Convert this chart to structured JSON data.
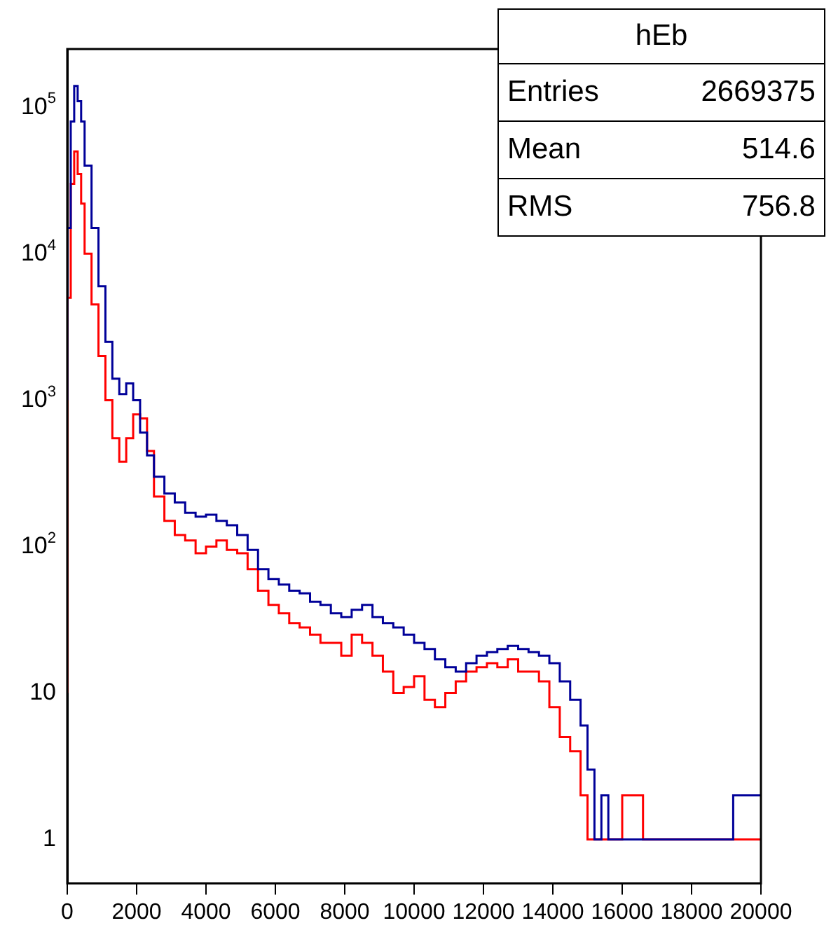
{
  "chart_data": {
    "type": "step",
    "xlim": [
      0,
      20000
    ],
    "xticks": [
      0,
      2000,
      4000,
      6000,
      8000,
      10000,
      12000,
      14000,
      16000,
      18000,
      20000
    ],
    "ylim": [
      0.5,
      250000
    ],
    "yticks": [
      1,
      10,
      {
        "value": 100,
        "label": "10$^{2}$"
      },
      {
        "value": 1000,
        "label": "10$^{3}$"
      },
      {
        "value": 10000,
        "label": "10$^{4}$"
      },
      {
        "value": 100000,
        "label": "10$^{5}$"
      }
    ],
    "log": "y",
    "grid": false,
    "legend": false,
    "annotations": [
      "hEb",
      "Entries 2669375",
      "Mean 514.6",
      "RMS 756.8"
    ],
    "series": [
      {
        "color": "#000099",
        "x": [
          0,
          100,
          200,
          300,
          400,
          500,
          700,
          900,
          1100,
          1300,
          1500,
          1700,
          1900,
          2100,
          2300,
          2500,
          2800,
          3100,
          3400,
          3700,
          4000,
          4300,
          4600,
          4900,
          5200,
          5500,
          5800,
          6100,
          6400,
          6700,
          7000,
          7300,
          7600,
          7900,
          8200,
          8500,
          8800,
          9100,
          9400,
          9700,
          10000,
          10300,
          10600,
          10900,
          11200,
          11500,
          11800,
          12100,
          12400,
          12700,
          13000,
          13300,
          13600,
          13900,
          14200,
          14500,
          14800,
          15000,
          15200,
          15400,
          15600,
          15800,
          16100,
          16500,
          17400,
          18300,
          19200,
          19500,
          19800,
          20000
        ],
        "values": [
          1000,
          15000,
          80000,
          140000,
          110000,
          80000,
          40000,
          15000,
          6000,
          2500,
          1400,
          1100,
          1300,
          1000,
          600,
          420,
          300,
          230,
          200,
          170,
          160,
          165,
          150,
          140,
          120,
          95,
          70,
          60,
          55,
          50,
          48,
          42,
          40,
          35,
          33,
          37,
          40,
          33,
          30,
          28,
          25,
          22,
          20,
          17,
          15,
          14,
          16,
          18,
          19,
          20,
          21,
          20,
          19,
          18,
          16,
          12,
          9,
          6,
          3,
          1,
          2,
          1,
          1,
          1,
          1,
          1,
          1,
          2,
          2,
          2
        ]
      },
      {
        "color": "#ff0000",
        "x": [
          0,
          100,
          200,
          300,
          400,
          500,
          700,
          900,
          1100,
          1300,
          1500,
          1700,
          1900,
          2100,
          2300,
          2500,
          2800,
          3100,
          3400,
          3700,
          4000,
          4300,
          4600,
          4900,
          5200,
          5500,
          5800,
          6100,
          6400,
          6700,
          7000,
          7300,
          7600,
          7900,
          8200,
          8500,
          8800,
          9100,
          9400,
          9700,
          10000,
          10300,
          10600,
          10900,
          11200,
          11500,
          11800,
          12100,
          12400,
          12700,
          13000,
          13300,
          13600,
          13900,
          14200,
          14500,
          14800,
          15000,
          15200,
          15600,
          16000,
          16600,
          17000,
          17600,
          18500,
          19100,
          19600,
          20000
        ],
        "values": [
          10,
          5000,
          30000,
          50000,
          35000,
          22000,
          10000,
          4500,
          2000,
          1000,
          550,
          380,
          550,
          800,
          750,
          450,
          220,
          150,
          120,
          110,
          90,
          100,
          110,
          95,
          90,
          70,
          50,
          40,
          35,
          30,
          28,
          25,
          22,
          22,
          18,
          25,
          22,
          18,
          14,
          10,
          11,
          13,
          9,
          8,
          10,
          12,
          14,
          15,
          16,
          15,
          17,
          14,
          14,
          12,
          8,
          5,
          4,
          2,
          1,
          1,
          1,
          2,
          1,
          1,
          1,
          1,
          1,
          1
        ]
      }
    ]
  }
}
